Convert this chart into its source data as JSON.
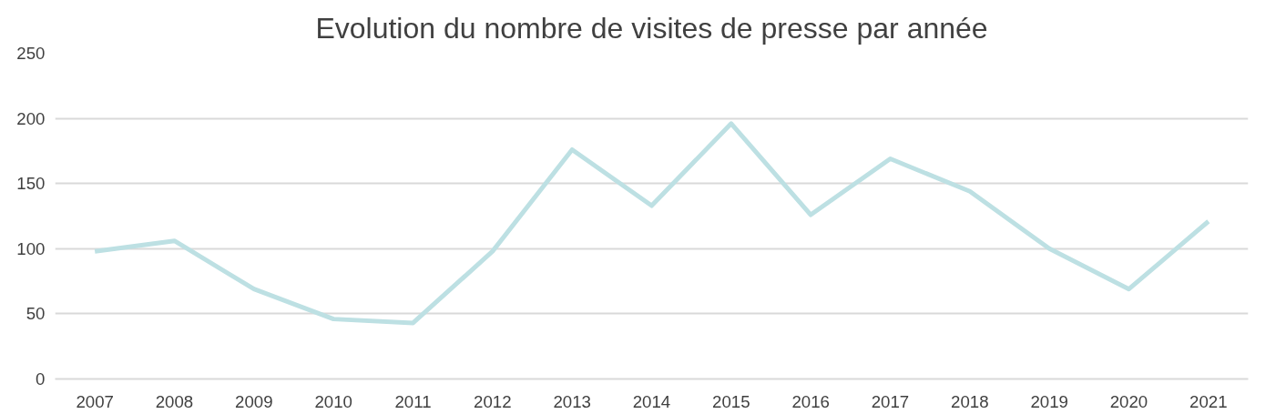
{
  "chart_data": {
    "type": "line",
    "title": "Evolution du nombre de visites de presse par année",
    "categories": [
      "2007",
      "2008",
      "2009",
      "2010",
      "2011",
      "2012",
      "2013",
      "2014",
      "2015",
      "2016",
      "2017",
      "2018",
      "2019",
      "2020",
      "2021"
    ],
    "series": [
      {
        "color": "#bde0e3",
        "values": [
          98,
          106,
          69,
          46,
          43,
          98,
          176,
          133,
          196,
          126,
          169,
          144,
          100,
          69,
          121
        ]
      }
    ],
    "ylim": [
      0,
      250
    ],
    "yticks": [
      0,
      50,
      100,
      150,
      200,
      250
    ],
    "grid": "y",
    "marker": "none",
    "line_style": "solid"
  }
}
